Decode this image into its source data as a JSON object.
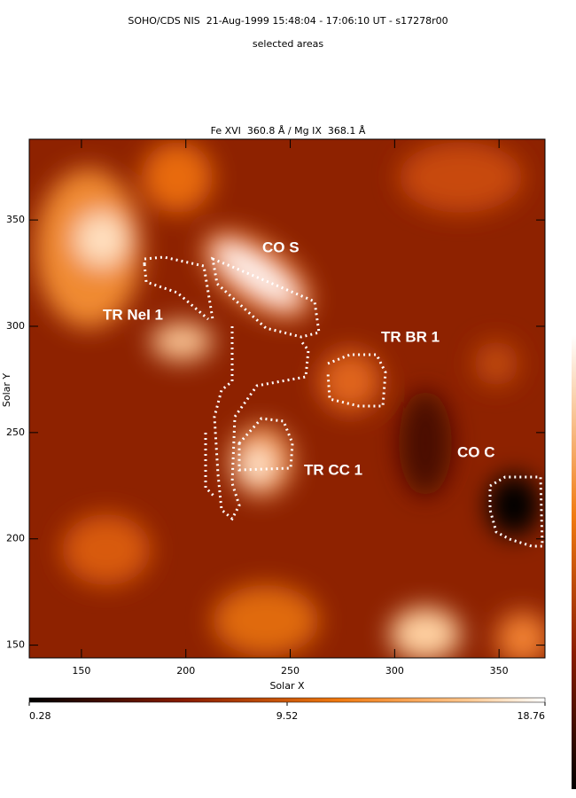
{
  "chart_data": {
    "type": "image",
    "title": "SOHO/CDS NIS  21-Aug-1999 15:48:04 - 17:06:10 UT - s17278r00",
    "subtitle": "selected areas",
    "plot_title": "Fe XVI  360.8 Å / Mg IX  368.1 Å",
    "x_label": "Solar X",
    "y_label": "Solar Y",
    "xlim": [
      125,
      372
    ],
    "xticks": [
      150,
      200,
      250,
      300,
      350
    ],
    "ylim": [
      144,
      388
    ],
    "yticks": [
      150,
      200,
      250,
      300,
      350
    ],
    "colorbar": {
      "lim": [
        0.28,
        18.76
      ],
      "ticks": [
        0.28,
        9.52,
        18.76
      ]
    },
    "regions": [
      "CO S",
      "TR NeI 1",
      "TR BR 1",
      "TR CC 1",
      "CO C"
    ]
  }
}
